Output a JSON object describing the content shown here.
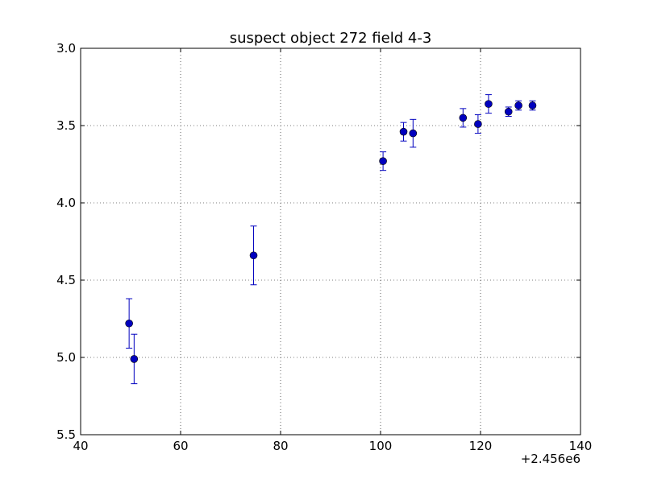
{
  "chart_data": {
    "type": "scatter",
    "title": "suspect object 272 field 4-3",
    "xlabel": "",
    "ylabel": "",
    "x_offset_label": "+2.456e6",
    "xlim": [
      40,
      140
    ],
    "ylim": [
      3.0,
      5.5
    ],
    "y_inverted": true,
    "xticks": [
      "40",
      "60",
      "80",
      "100",
      "120",
      "140"
    ],
    "yticks": [
      "3.0",
      "3.5",
      "4.0",
      "4.5",
      "5.0",
      "5.5"
    ],
    "grid": true,
    "marker_color": "#0000bf",
    "points": [
      {
        "x": 49.7,
        "y": 4.78,
        "err": 0.16
      },
      {
        "x": 50.7,
        "y": 5.01,
        "err": 0.16
      },
      {
        "x": 74.6,
        "y": 4.34,
        "err": 0.19
      },
      {
        "x": 100.5,
        "y": 3.73,
        "err": 0.06
      },
      {
        "x": 104.6,
        "y": 3.54,
        "err": 0.06
      },
      {
        "x": 106.5,
        "y": 3.55,
        "err": 0.09
      },
      {
        "x": 116.5,
        "y": 3.45,
        "err": 0.06
      },
      {
        "x": 119.5,
        "y": 3.49,
        "err": 0.06
      },
      {
        "x": 121.6,
        "y": 3.36,
        "err": 0.06
      },
      {
        "x": 125.6,
        "y": 3.41,
        "err": 0.03
      },
      {
        "x": 127.6,
        "y": 3.37,
        "err": 0.03
      },
      {
        "x": 130.4,
        "y": 3.37,
        "err": 0.03
      }
    ]
  }
}
